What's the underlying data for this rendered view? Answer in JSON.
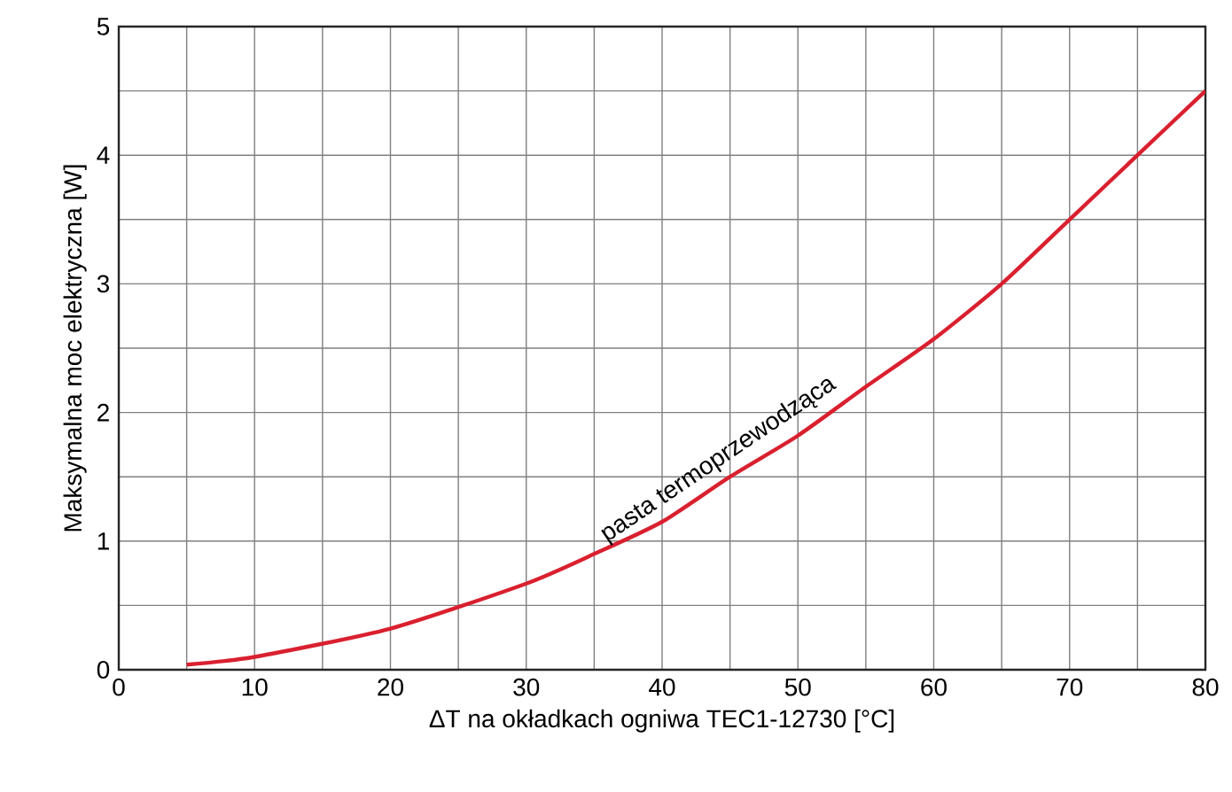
{
  "chart_data": {
    "type": "line",
    "xlabel": "ΔT na okładkach ogniwa TEC1-12730 [°C]",
    "ylabel": "Maksymalna moc elektryczna [W]",
    "x": [
      5,
      10,
      20,
      30,
      35,
      40,
      45,
      50,
      55,
      60,
      65,
      70,
      75,
      80
    ],
    "series": [
      {
        "color": "#d9202f",
        "values": [
          0.04,
          0.1,
          0.32,
          0.67,
          0.9,
          1.15,
          1.5,
          1.82,
          2.2,
          2.57,
          3.0,
          3.5,
          4.0,
          4.5
        ]
      }
    ],
    "xlim": [
      0,
      80
    ],
    "ylim": [
      0,
      5
    ],
    "xticks": [
      0,
      10,
      20,
      30,
      40,
      50,
      60,
      70,
      80
    ],
    "yticks": [
      0,
      1,
      2,
      3,
      4,
      5
    ],
    "grid": true,
    "marker": "none",
    "line_style": "solid",
    "annotations": [
      {
        "text": "pasta termoprzewodząca",
        "x": 45,
        "y": 1.5
      }
    ]
  }
}
